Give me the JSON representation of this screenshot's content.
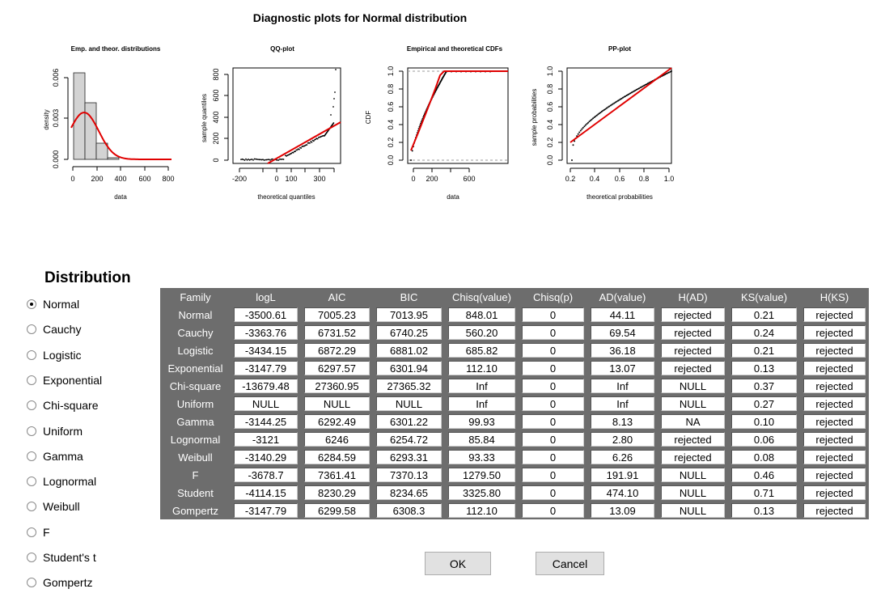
{
  "plots_title": "Diagnostic plots for Normal distribution",
  "plots": {
    "hist": {
      "title": "Emp. and theor. distributions",
      "xlabel": "data",
      "ylabel": "density",
      "xticks": [
        "0",
        "200",
        "400",
        "600",
        "800"
      ],
      "yticks": [
        "0.000",
        "0.003",
        "0.006"
      ]
    },
    "qq": {
      "title": "QQ-plot",
      "xlabel": "theoretical quantiles",
      "ylabel": "sample quantiles",
      "xticks": [
        "-200",
        "0",
        "100",
        "300"
      ],
      "yticks": [
        "0",
        "200",
        "400",
        "600",
        "800"
      ]
    },
    "cdf": {
      "title": "Empirical and theoretical CDFs",
      "xlabel": "data",
      "ylabel": "CDF",
      "xticks": [
        "0",
        "200",
        "600"
      ],
      "yticks": [
        "0.0",
        "0.2",
        "0.4",
        "0.6",
        "0.8",
        "1.0"
      ]
    },
    "pp": {
      "title": "PP-plot",
      "xlabel": "theoretical probabilities",
      "ylabel": "sample probabilities",
      "xticks": [
        "0.2",
        "0.4",
        "0.6",
        "0.8",
        "1.0"
      ],
      "yticks": [
        "0.0",
        "0.2",
        "0.4",
        "0.6",
        "0.8",
        "1.0"
      ]
    }
  },
  "distribution_heading": "Distribution",
  "distributions": [
    {
      "label": "Normal",
      "checked": true
    },
    {
      "label": "Cauchy",
      "checked": false
    },
    {
      "label": "Logistic",
      "checked": false
    },
    {
      "label": "Exponential",
      "checked": false
    },
    {
      "label": "Chi-square",
      "checked": false
    },
    {
      "label": "Uniform",
      "checked": false
    },
    {
      "label": "Gamma",
      "checked": false
    },
    {
      "label": "Lognormal",
      "checked": false
    },
    {
      "label": "Weibull",
      "checked": false
    },
    {
      "label": "F",
      "checked": false
    },
    {
      "label": "Student's t",
      "checked": false
    },
    {
      "label": "Gompertz",
      "checked": false
    }
  ],
  "table": {
    "columns": [
      "Family",
      "logL",
      "AIC",
      "BIC",
      "Chisq(value)",
      "Chisq(p)",
      "AD(value)",
      "H(AD)",
      "KS(value)",
      "H(KS)"
    ],
    "rows": [
      [
        "Normal",
        "-3500.61",
        "7005.23",
        "7013.95",
        "848.01",
        "0",
        "44.11",
        "rejected",
        "0.21",
        "rejected"
      ],
      [
        "Cauchy",
        "-3363.76",
        "6731.52",
        "6740.25",
        "560.20",
        "0",
        "69.54",
        "rejected",
        "0.24",
        "rejected"
      ],
      [
        "Logistic",
        "-3434.15",
        "6872.29",
        "6881.02",
        "685.82",
        "0",
        "36.18",
        "rejected",
        "0.21",
        "rejected"
      ],
      [
        "Exponential",
        "-3147.79",
        "6297.57",
        "6301.94",
        "112.10",
        "0",
        "13.07",
        "rejected",
        "0.13",
        "rejected"
      ],
      [
        "Chi-square",
        "-13679.48",
        "27360.95",
        "27365.32",
        "Inf",
        "0",
        "Inf",
        "NULL",
        "0.37",
        "rejected"
      ],
      [
        "Uniform",
        "NULL",
        "NULL",
        "NULL",
        "Inf",
        "0",
        "Inf",
        "NULL",
        "0.27",
        "rejected"
      ],
      [
        "Gamma",
        "-3144.25",
        "6292.49",
        "6301.22",
        "99.93",
        "0",
        "8.13",
        "NA",
        "0.10",
        "rejected"
      ],
      [
        "Lognormal",
        "-3121",
        "6246",
        "6254.72",
        "85.84",
        "0",
        "2.80",
        "rejected",
        "0.06",
        "rejected"
      ],
      [
        "Weibull",
        "-3140.29",
        "6284.59",
        "6293.31",
        "93.33",
        "0",
        "6.26",
        "rejected",
        "0.08",
        "rejected"
      ],
      [
        "F",
        "-3678.7",
        "7361.41",
        "7370.13",
        "1279.50",
        "0",
        "191.91",
        "NULL",
        "0.46",
        "rejected"
      ],
      [
        "Student",
        "-4114.15",
        "8230.29",
        "8234.65",
        "3325.80",
        "0",
        "474.10",
        "NULL",
        "0.71",
        "rejected"
      ],
      [
        "Gompertz",
        "-3147.79",
        "6299.58",
        "6308.3",
        "112.10",
        "0",
        "13.09",
        "NULL",
        "0.13",
        "rejected"
      ]
    ]
  },
  "buttons": {
    "ok": "OK",
    "cancel": "Cancel"
  },
  "colors": {
    "fit_line": "#e00000",
    "table_header": "#6d6d6d",
    "hist_bar": "#d3d3d3"
  }
}
